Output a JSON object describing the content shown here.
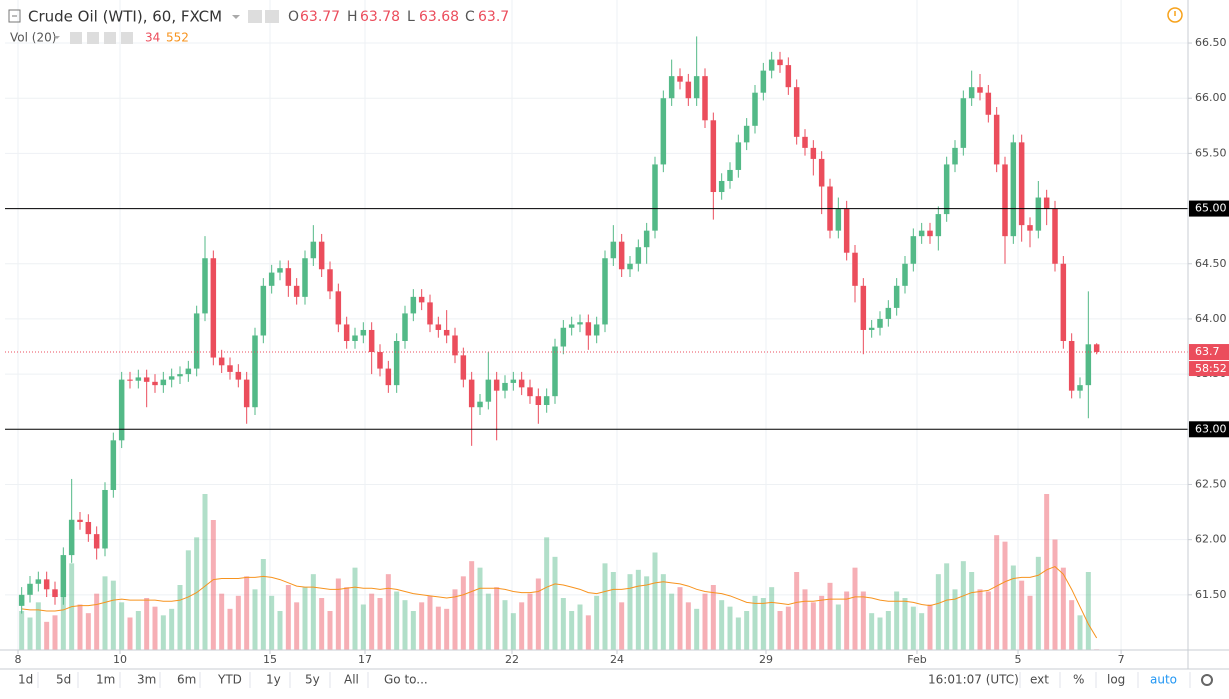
{
  "chart_data": {
    "type": "candlestick",
    "title": "Crude Oil (WTI), 60, FXCM",
    "ohlc_labels": [
      "O",
      "H",
      "L",
      "C"
    ],
    "volume_title": "Vol (20)",
    "countdown": "58:52",
    "up_color": "#53b987",
    "down_color": "#eb4d5c",
    "ma_color": "#f7931e",
    "open": [
      61.4,
      61.5,
      61.6,
      61.64,
      61.55,
      61.48,
      61.86,
      62.18,
      62.16,
      62.05,
      61.92,
      62.45,
      62.9,
      63.45,
      63.44,
      63.47,
      63.43,
      63.4,
      63.45,
      63.48,
      63.5,
      63.55,
      64.05,
      64.55,
      63.65,
      63.58,
      63.52,
      63.45,
      63.2,
      63.85,
      64.3,
      64.42,
      64.46,
      64.3,
      64.2,
      64.55,
      64.7,
      64.45,
      64.25,
      63.95,
      63.8,
      63.85,
      63.9,
      63.7,
      63.55,
      63.4,
      63.8,
      64.05,
      64.2,
      64.15,
      63.95,
      63.9,
      63.85,
      63.67,
      63.45,
      63.2,
      63.25,
      63.45,
      63.35,
      63.42,
      63.45,
      63.38,
      63.3,
      63.22,
      63.3,
      63.75,
      63.92,
      63.95,
      63.97,
      63.85,
      63.95,
      64.55,
      64.7,
      64.45,
      64.5,
      64.65,
      64.8,
      65.4,
      66.0,
      66.2,
      66.15,
      66.0,
      66.2,
      65.8,
      65.15,
      65.25,
      65.35,
      65.6,
      65.75,
      66.05,
      66.25,
      66.35,
      66.3,
      66.1,
      65.65,
      65.55,
      65.45,
      65.2,
      64.8,
      65.0,
      64.6,
      64.3,
      63.9,
      63.92,
      64.0,
      64.1,
      64.3,
      64.5,
      64.75,
      64.8,
      64.75,
      64.95,
      65.4,
      65.55,
      66.0,
      66.1,
      66.05,
      65.85,
      65.4,
      64.75,
      65.6,
      64.85,
      64.8,
      65.1,
      65.0,
      64.5,
      63.8,
      63.35,
      63.4,
      63.77
    ],
    "high": [
      61.57,
      61.67,
      61.71,
      61.71,
      61.62,
      61.93,
      62.55,
      62.25,
      62.23,
      62.12,
      62.52,
      62.97,
      63.52,
      63.52,
      63.54,
      63.54,
      63.5,
      63.52,
      63.55,
      63.57,
      63.62,
      64.12,
      64.75,
      64.62,
      63.72,
      63.65,
      63.59,
      63.52,
      63.92,
      64.37,
      64.49,
      64.53,
      64.53,
      64.37,
      64.62,
      64.85,
      64.77,
      64.52,
      64.32,
      64.02,
      63.92,
      63.97,
      63.97,
      63.77,
      63.62,
      63.87,
      64.12,
      64.27,
      64.27,
      64.22,
      64.02,
      64.08,
      63.92,
      63.74,
      63.52,
      63.32,
      63.7,
      63.52,
      63.49,
      63.52,
      63.52,
      63.45,
      63.37,
      63.37,
      63.82,
      63.99,
      64.02,
      64.04,
      64.04,
      64.02,
      64.62,
      64.85,
      64.77,
      64.57,
      64.72,
      64.87,
      65.47,
      66.07,
      66.35,
      66.27,
      66.22,
      66.56,
      66.27,
      65.87,
      65.32,
      65.42,
      65.67,
      65.82,
      66.12,
      66.32,
      66.42,
      66.42,
      66.37,
      66.17,
      65.72,
      65.62,
      65.52,
      65.27,
      65.1,
      65.07,
      64.67,
      64.37,
      63.99,
      64.07,
      64.17,
      64.37,
      64.57,
      64.82,
      64.87,
      64.87,
      65.02,
      65.47,
      65.62,
      66.07,
      66.25,
      66.22,
      66.12,
      65.92,
      65.47,
      65.67,
      65.67,
      64.92,
      65.25,
      65.17,
      65.07,
      64.57,
      63.87,
      63.47,
      64.25,
      63.78
    ],
    "low": [
      61.33,
      61.43,
      61.53,
      61.48,
      61.41,
      61.41,
      61.79,
      62.09,
      61.98,
      61.82,
      61.85,
      62.38,
      62.83,
      63.37,
      63.37,
      63.2,
      63.33,
      63.33,
      63.38,
      63.41,
      63.43,
      63.48,
      63.98,
      63.58,
      63.51,
      63.45,
      63.38,
      63.05,
      63.13,
      63.78,
      64.23,
      64.35,
      64.2,
      64.13,
      64.13,
      64.48,
      64.38,
      64.18,
      63.88,
      63.73,
      63.73,
      63.78,
      63.5,
      63.48,
      63.33,
      63.33,
      63.73,
      63.98,
      64.08,
      63.88,
      63.83,
      63.78,
      63.6,
      63.38,
      62.85,
      63.13,
      63.18,
      62.9,
      63.28,
      63.35,
      63.31,
      63.23,
      63.05,
      63.15,
      63.23,
      63.68,
      63.85,
      63.88,
      63.72,
      63.78,
      63.88,
      64.48,
      64.38,
      64.38,
      64.43,
      64.5,
      64.73,
      65.33,
      65.93,
      66.08,
      65.93,
      65.93,
      65.73,
      64.9,
      65.08,
      65.18,
      65.28,
      65.53,
      65.68,
      65.98,
      66.18,
      66.23,
      66.03,
      65.58,
      65.48,
      65.3,
      64.95,
      64.73,
      64.73,
      64.53,
      64.15,
      63.68,
      63.83,
      63.85,
      63.93,
      64.03,
      64.23,
      64.43,
      64.68,
      64.68,
      64.62,
      64.88,
      65.33,
      65.48,
      65.93,
      65.98,
      65.78,
      65.33,
      64.5,
      64.68,
      64.7,
      64.65,
      64.73,
      64.85,
      64.43,
      63.73,
      63.28,
      63.28,
      63.1,
      63.68
    ],
    "close": [
      61.5,
      61.6,
      61.64,
      61.55,
      61.48,
      61.86,
      62.18,
      62.16,
      62.05,
      61.92,
      62.45,
      62.9,
      63.45,
      63.44,
      63.47,
      63.43,
      63.4,
      63.45,
      63.48,
      63.5,
      63.55,
      64.05,
      64.55,
      63.65,
      63.58,
      63.52,
      63.45,
      63.2,
      63.85,
      64.3,
      64.42,
      64.46,
      64.3,
      64.2,
      64.55,
      64.7,
      64.45,
      64.25,
      63.95,
      63.8,
      63.85,
      63.9,
      63.7,
      63.55,
      63.4,
      63.8,
      64.05,
      64.2,
      64.15,
      63.95,
      63.9,
      63.85,
      63.67,
      63.45,
      63.2,
      63.25,
      63.45,
      63.35,
      63.42,
      63.45,
      63.38,
      63.3,
      63.22,
      63.3,
      63.75,
      63.92,
      63.95,
      63.97,
      63.85,
      63.95,
      64.55,
      64.7,
      64.45,
      64.5,
      64.65,
      64.8,
      65.4,
      66.0,
      66.2,
      66.15,
      66.0,
      66.2,
      65.8,
      65.15,
      65.25,
      65.35,
      65.6,
      65.75,
      66.05,
      66.25,
      66.35,
      66.3,
      66.1,
      65.65,
      65.55,
      65.45,
      65.2,
      64.8,
      65.0,
      64.6,
      64.3,
      63.9,
      63.92,
      64.0,
      64.1,
      64.3,
      64.5,
      64.75,
      64.8,
      64.75,
      64.95,
      65.4,
      65.55,
      66.0,
      66.1,
      66.05,
      65.85,
      65.4,
      64.75,
      65.6,
      64.85,
      64.8,
      65.1,
      65.0,
      64.5,
      63.8,
      63.35,
      63.4,
      63.77,
      63.7
    ],
    "volume": [
      1800,
      1500,
      2200,
      1300,
      1600,
      2500,
      4000,
      2100,
      1700,
      2600,
      3400,
      3200,
      2200,
      1500,
      1800,
      2400,
      2000,
      1600,
      1900,
      3000,
      4600,
      5200,
      7200,
      6000,
      2600,
      1900,
      2500,
      3400,
      2800,
      4200,
      2500,
      1800,
      3000,
      2200,
      2900,
      3500,
      2400,
      1800,
      3300,
      2900,
      3800,
      2100,
      2600,
      2400,
      3500,
      2700,
      2300,
      1800,
      2200,
      2500,
      2000,
      1900,
      2800,
      3400,
      4100,
      3800,
      2600,
      2900,
      2300,
      1700,
      2200,
      2600,
      3300,
      5200,
      4300,
      2400,
      1800,
      2100,
      1600,
      2500,
      4000,
      3600,
      2200,
      3500,
      3700,
      3400,
      4500,
      3500,
      2600,
      2900,
      2200,
      1900,
      2600,
      3000,
      2300,
      2000,
      1500,
      1800,
      2500,
      2400,
      2900,
      1800,
      2000,
      3600,
      2800,
      2200,
      2500,
      3100,
      2100,
      2700,
      3800,
      2700,
      1700,
      1500,
      1800,
      2700,
      2400,
      2000,
      1700,
      2100,
      3500,
      4000,
      2800,
      4100,
      3600,
      2800,
      2700,
      5300,
      5000,
      3900,
      3200,
      2500,
      4300,
      7200,
      5100,
      3800,
      2300,
      1600,
      3600,
      34
    ],
    "vol_ma": [
      1900,
      1850,
      1850,
      1800,
      1800,
      1850,
      2000,
      2050,
      2050,
      2100,
      2200,
      2300,
      2350,
      2300,
      2300,
      2300,
      2300,
      2250,
      2250,
      2300,
      2450,
      2650,
      2950,
      3250,
      3300,
      3300,
      3300,
      3350,
      3350,
      3400,
      3350,
      3250,
      3100,
      2950,
      2900,
      2900,
      2850,
      2800,
      2800,
      2850,
      2900,
      2850,
      2850,
      2800,
      2850,
      2800,
      2700,
      2600,
      2550,
      2500,
      2450,
      2400,
      2450,
      2550,
      2700,
      2850,
      2850,
      2850,
      2800,
      2700,
      2650,
      2650,
      2700,
      2900,
      3050,
      3000,
      2900,
      2800,
      2650,
      2600,
      2700,
      2800,
      2800,
      2850,
      2950,
      3000,
      3100,
      3150,
      3100,
      3050,
      2950,
      2800,
      2700,
      2650,
      2600,
      2500,
      2350,
      2200,
      2150,
      2150,
      2200,
      2150,
      2100,
      2200,
      2250,
      2250,
      2300,
      2350,
      2350,
      2350,
      2450,
      2450,
      2400,
      2300,
      2250,
      2250,
      2250,
      2200,
      2100,
      2050,
      2150,
      2300,
      2350,
      2500,
      2650,
      2700,
      2750,
      2950,
      3150,
      3300,
      3350,
      3350,
      3450,
      3700,
      3850,
      3500,
      2800,
      2000,
      1200,
      552
    ],
    "vol_ylim": [
      0,
      30000
    ],
    "xlim": [
      -2,
      139.96
    ],
    "xticks": [
      {
        "value": -0.44,
        "label": "8"
      },
      {
        "value": 11.8,
        "label": "10"
      },
      {
        "value": 29.8,
        "label": "15"
      },
      {
        "value": 41.2,
        "label": "17"
      },
      {
        "value": 58.84,
        "label": "22"
      },
      {
        "value": 71.44,
        "label": "24"
      },
      {
        "value": 89.32,
        "label": "29"
      },
      {
        "value": 107.44,
        "label": "Feb"
      },
      {
        "value": 119.56,
        "label": "5"
      },
      {
        "value": 131.93,
        "label": "7"
      }
    ],
    "ylim": [
      61.0,
      66.89
    ],
    "yticks": [
      {
        "value": 61.5,
        "label": "61.50"
      },
      {
        "value": 62.0,
        "label": "62.00"
      },
      {
        "value": 62.5,
        "label": "62.50"
      },
      {
        "value": 63.0,
        "label": "63.00"
      },
      {
        "value": 63.5,
        "label": "63.50"
      },
      {
        "value": 64.0,
        "label": "64.00"
      },
      {
        "value": 64.5,
        "label": "64.50"
      },
      {
        "value": 65.0,
        "label": "65.00"
      },
      {
        "value": 65.5,
        "label": "65.50"
      },
      {
        "value": 66.0,
        "label": "66.00"
      },
      {
        "value": 66.5,
        "label": "66.50"
      }
    ],
    "hlines": [
      {
        "value": 65.0,
        "label": "65.00"
      },
      {
        "value": 63.0,
        "label": "63.00"
      }
    ],
    "grid": true
  },
  "toolbar": {
    "ranges": [
      "1d",
      "5d",
      "1m",
      "3m",
      "6m",
      "YTD",
      "1y",
      "5y",
      "All"
    ],
    "goto": "Go to...",
    "clock": "16:01:07 (UTC)",
    "options": [
      "ext",
      "%",
      "log",
      "auto"
    ]
  }
}
